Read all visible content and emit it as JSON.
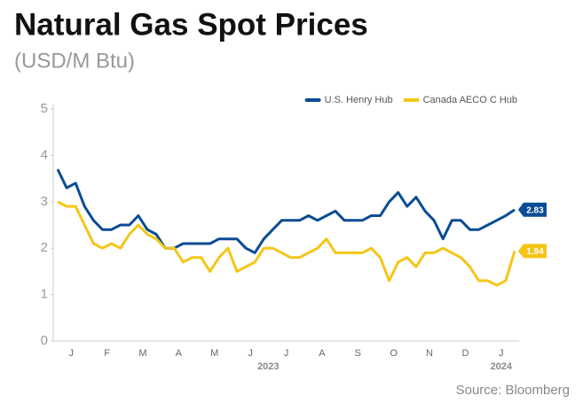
{
  "chart_data": {
    "type": "line",
    "title": "Natural Gas Spot Prices",
    "subtitle": "(USD/M Btu)",
    "source": "Source: Bloomberg",
    "categories": [
      null,
      "J",
      null,
      null,
      null,
      "F",
      null,
      null,
      null,
      "M",
      null,
      null,
      null,
      "A",
      null,
      null,
      null,
      "M",
      null,
      null,
      null,
      "J",
      null,
      null,
      null,
      "J",
      null,
      null,
      null,
      "A",
      null,
      null,
      null,
      "S",
      null,
      null,
      null,
      "O",
      null,
      null,
      null,
      "N",
      null,
      null,
      null,
      "D",
      null,
      null,
      null,
      "J",
      null,
      null
    ],
    "years": [
      "2023",
      "2024"
    ],
    "series": [
      {
        "name": "U.S. Henry Hub",
        "color": "#0a4c95",
        "values": [
          3.7,
          3.3,
          3.4,
          2.9,
          2.6,
          2.4,
          2.4,
          2.5,
          2.5,
          2.7,
          2.4,
          2.3,
          2.0,
          2.0,
          2.1,
          2.1,
          2.1,
          2.1,
          2.2,
          2.2,
          2.2,
          2.0,
          1.9,
          2.2,
          2.4,
          2.6,
          2.6,
          2.6,
          2.7,
          2.6,
          2.7,
          2.8,
          2.6,
          2.6,
          2.6,
          2.7,
          2.7,
          3.0,
          3.2,
          2.9,
          3.1,
          2.8,
          2.6,
          2.2,
          2.6,
          2.6,
          2.4,
          2.4,
          2.5,
          2.6,
          2.7,
          2.83
        ]
      },
      {
        "name": "Canada AECO C Hub",
        "color": "#f5c518",
        "values": [
          3.0,
          2.9,
          2.9,
          2.5,
          2.1,
          2.0,
          2.1,
          2.0,
          2.3,
          2.5,
          2.3,
          2.2,
          2.0,
          2.0,
          1.7,
          1.8,
          1.8,
          1.5,
          1.8,
          2.0,
          1.5,
          1.6,
          1.7,
          2.0,
          2.0,
          1.9,
          1.8,
          1.8,
          1.9,
          2.0,
          2.2,
          1.9,
          1.9,
          1.9,
          1.9,
          2.0,
          1.8,
          1.3,
          1.7,
          1.8,
          1.6,
          1.9,
          1.9,
          2.0,
          1.9,
          1.8,
          1.6,
          1.3,
          1.3,
          1.2,
          1.3,
          1.94
        ]
      }
    ],
    "ylim": [
      0,
      5
    ],
    "yticks": [
      0,
      1,
      2,
      3,
      4,
      5
    ],
    "grid": false,
    "legend": "top-right"
  }
}
